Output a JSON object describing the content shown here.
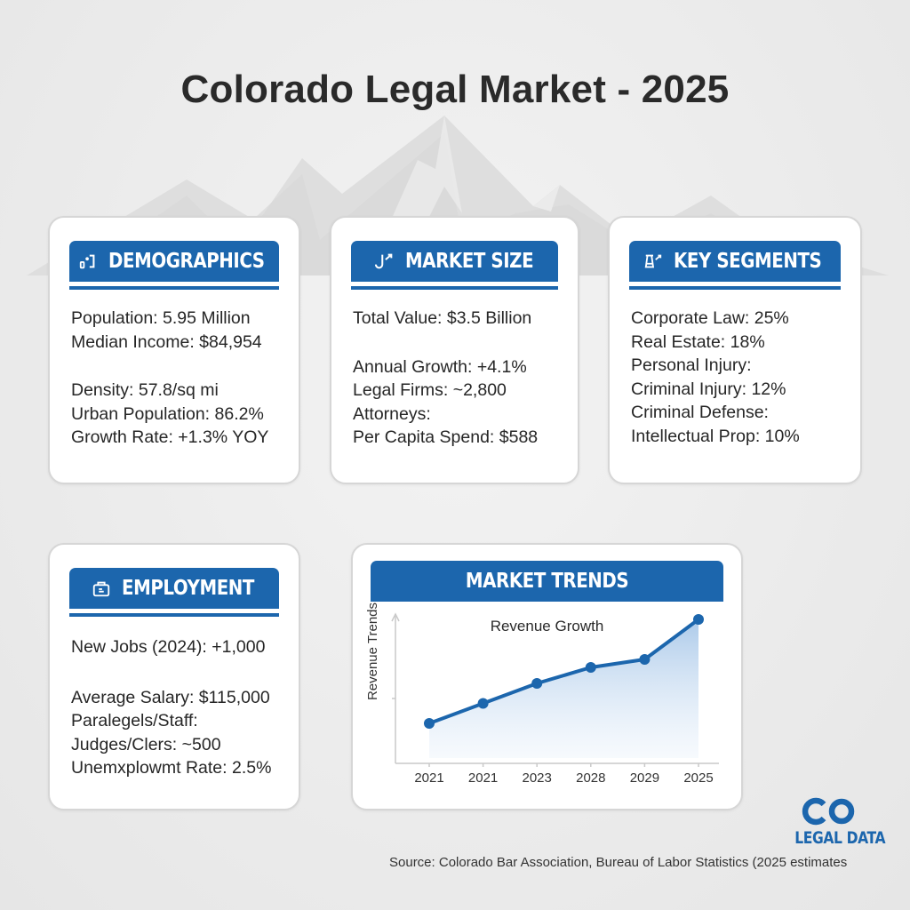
{
  "page": {
    "title": "Colorado Legal Market - 2025",
    "source": "Source: Colorado Bar Association, Bureau of Labor Statistics (2025 estimates",
    "logo": {
      "mark": "CO",
      "text": "LEGAL DATA"
    }
  },
  "colors": {
    "accent": "#1c66ad",
    "background": "#ededed",
    "card": "#ffffff",
    "text": "#262626"
  },
  "cards": {
    "demographics": {
      "title": "DEMOGRAPHICS",
      "icon": "people-icon",
      "lines": [
        "Population: 5.95 Million",
        "Median Income: $84,954",
        "Density: 57.8/sq mi",
        "Urban Population: 86.2%",
        "Growth Rate: +1.3% YOY"
      ]
    },
    "market_size": {
      "title": "MARKET SIZE",
      "icon": "growth-icon",
      "lines": [
        "Total Value: $3.5 Billion",
        "Annual Growth: +4.1%",
        "Legal Firms: ~2,800",
        "Attorneys:",
        "Per Capita Spend: $588"
      ]
    },
    "key_segments": {
      "title": "KEY SEGMENTS",
      "icon": "flask-icon",
      "lines": [
        "Corporate Law: 25%",
        "Real Estate: 18%",
        "Personal Injury:",
        "Criminal Injury: 12%",
        "Criminal Defense:",
        "Intellectual Prop: 10%"
      ]
    },
    "employment": {
      "title": "EMPLOYMENT",
      "icon": "briefcase-icon",
      "lines": [
        "New Jobs (2024): +1,000",
        "Average Salary: $115,000",
        "Paralegels/Staff:",
        "Judges/Clers: ~500",
        "Unemxplowmt Rate: 2.5%"
      ]
    },
    "market_trends": {
      "title": "MARKET TRENDS"
    }
  },
  "chart_data": {
    "type": "area",
    "title": "Revenue Growth",
    "xlabel": "",
    "ylabel": "Revenue Trends",
    "categories": [
      "2021",
      "2021",
      "2023",
      "2028",
      "2029",
      "2025"
    ],
    "series": [
      {
        "name": "Revenue",
        "values": [
          20,
          30,
          40,
          48,
          52,
          72
        ]
      }
    ],
    "ylim": [
      0,
      80
    ],
    "grid": false,
    "legend": "none",
    "y_tick_labels": false
  }
}
